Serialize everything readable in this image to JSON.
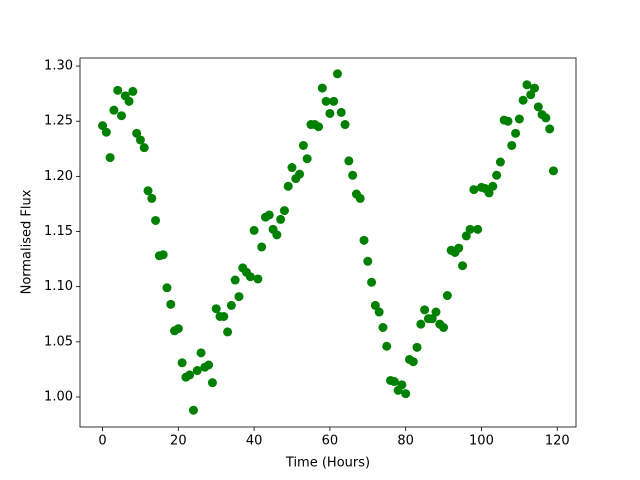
{
  "chart_data": {
    "type": "scatter",
    "xlabel": "Time (Hours)",
    "ylabel": "Normalised Flux",
    "x": [
      0,
      1,
      2,
      3,
      4,
      5,
      6,
      7,
      8,
      9,
      10,
      11,
      12,
      13,
      14,
      15,
      16,
      17,
      18,
      19,
      20,
      21,
      22,
      23,
      24,
      25,
      26,
      27,
      28,
      29,
      30,
      31,
      32,
      33,
      34,
      35,
      36,
      37,
      38,
      39,
      40,
      41,
      42,
      43,
      44,
      45,
      46,
      47,
      48,
      49,
      50,
      51,
      52,
      53,
      54,
      55,
      56,
      57,
      58,
      59,
      60,
      61,
      62,
      63,
      64,
      65,
      66,
      67,
      68,
      69,
      70,
      71,
      72,
      73,
      74,
      75,
      76,
      77,
      78,
      79,
      80,
      81,
      82,
      83,
      84,
      85,
      86,
      87,
      88,
      89,
      90,
      91,
      92,
      93,
      94,
      95,
      96,
      97,
      98,
      99,
      100,
      101,
      102,
      103,
      104,
      105,
      106,
      107,
      108,
      109,
      110,
      111,
      112,
      113,
      114,
      115,
      116,
      117,
      118,
      119
    ],
    "series": [
      {
        "color": "#008000",
        "values": [
          1.246,
          1.24,
          1.217,
          1.26,
          1.278,
          1.255,
          1.273,
          1.268,
          1.277,
          1.239,
          1.233,
          1.226,
          1.187,
          1.18,
          1.16,
          1.128,
          1.129,
          1.099,
          1.084,
          1.06,
          1.062,
          1.031,
          1.018,
          1.02,
          0.988,
          1.024,
          1.04,
          1.027,
          1.029,
          1.013,
          1.08,
          1.073,
          1.073,
          1.059,
          1.083,
          1.106,
          1.091,
          1.117,
          1.113,
          1.109,
          1.151,
          1.107,
          1.136,
          1.163,
          1.165,
          1.152,
          1.147,
          1.161,
          1.169,
          1.191,
          1.208,
          1.198,
          1.202,
          1.228,
          1.216,
          1.247,
          1.247,
          1.245,
          1.28,
          1.268,
          1.257,
          1.268,
          1.293,
          1.258,
          1.247,
          1.214,
          1.201,
          1.184,
          1.18,
          1.142,
          1.123,
          1.104,
          1.083,
          1.077,
          1.063,
          1.046,
          1.015,
          1.014,
          1.006,
          1.011,
          1.003,
          1.034,
          1.032,
          1.045,
          1.066,
          1.079,
          1.071,
          1.071,
          1.077,
          1.066,
          1.063,
          1.092,
          1.133,
          1.131,
          1.135,
          1.119,
          1.146,
          1.152,
          1.188,
          1.152,
          1.19,
          1.189,
          1.185,
          1.191,
          1.201,
          1.213,
          1.251,
          1.25,
          1.228,
          1.239,
          1.252,
          1.269,
          1.283,
          1.274,
          1.28,
          1.263,
          1.256,
          1.253,
          1.243,
          1.205
        ]
      }
    ],
    "xlim": [
      -5.95,
      124.95
    ],
    "ylim": [
      0.9728,
      1.3073
    ],
    "xticks": [
      0,
      20,
      40,
      60,
      80,
      100,
      120
    ],
    "yticks": [
      {
        "value": 1.0,
        "label": "1.00"
      },
      {
        "value": 1.05,
        "label": "1.05"
      },
      {
        "value": 1.1,
        "label": "1.10"
      },
      {
        "value": 1.15,
        "label": "1.15"
      },
      {
        "value": 1.2,
        "label": "1.20"
      },
      {
        "value": 1.25,
        "label": "1.25"
      },
      {
        "value": 1.3,
        "label": "1.30"
      }
    ]
  }
}
